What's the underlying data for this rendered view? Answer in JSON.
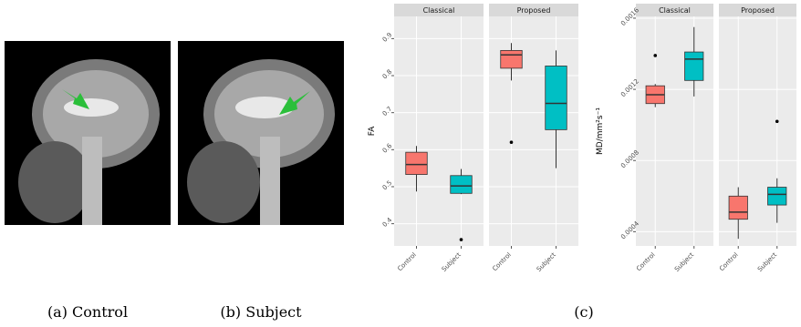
{
  "captions": [
    "(a) Control",
    "(b) Subject",
    "(c)"
  ],
  "chart_data": [
    {
      "type": "box",
      "ylabel": "FA",
      "ylim": [
        0.34,
        0.96
      ],
      "yticks": [
        0.4,
        0.5,
        0.6,
        0.7,
        0.8,
        0.9
      ],
      "grid": true,
      "colors": [
        "#f8766d",
        "#00bfc4"
      ],
      "facets": [
        {
          "title": "Classical",
          "categories": [
            "Control",
            "Subject"
          ],
          "boxes": [
            {
              "min": 0.487,
              "q1": 0.533,
              "median": 0.56,
              "q3": 0.593,
              "max": 0.61,
              "outliers": []
            },
            {
              "min": 0.48,
              "q1": 0.482,
              "median": 0.502,
              "q3": 0.53,
              "max": 0.548,
              "outliers": [
                0.357
              ]
            }
          ]
        },
        {
          "title": "Proposed",
          "categories": [
            "Control",
            "Subject"
          ],
          "boxes": [
            {
              "min": 0.787,
              "q1": 0.82,
              "median": 0.856,
              "q3": 0.868,
              "max": 0.888,
              "outliers": [
                0.62
              ]
            },
            {
              "min": 0.55,
              "q1": 0.654,
              "median": 0.725,
              "q3": 0.826,
              "max": 0.868,
              "outliers": []
            }
          ]
        }
      ]
    },
    {
      "type": "box",
      "ylabel": "MD/mm²s⁻¹",
      "ylim": [
        0.00032,
        0.00161
      ],
      "yticks": [
        0.0004,
        0.0008,
        0.0012,
        0.0016
      ],
      "grid": true,
      "colors": [
        "#f8766d",
        "#00bfc4"
      ],
      "facets": [
        {
          "title": "Classical",
          "categories": [
            "Control",
            "Subject"
          ],
          "boxes": [
            {
              "min": 0.0011,
              "q1": 0.00112,
              "median": 0.00117,
              "q3": 0.00122,
              "max": 0.00123,
              "outliers": [
                0.00139
              ]
            },
            {
              "min": 0.00116,
              "q1": 0.00125,
              "median": 0.00137,
              "q3": 0.00141,
              "max": 0.00155,
              "outliers": []
            }
          ]
        },
        {
          "title": "Proposed",
          "categories": [
            "Control",
            "Subject"
          ],
          "boxes": [
            {
              "min": 0.00036,
              "q1": 0.00047,
              "median": 0.00051,
              "q3": 0.0006,
              "max": 0.00065,
              "outliers": []
            },
            {
              "min": 0.00045,
              "q1": 0.00055,
              "median": 0.00061,
              "q3": 0.00065,
              "max": 0.0007,
              "outliers": [
                0.00102
              ]
            }
          ]
        }
      ]
    }
  ]
}
